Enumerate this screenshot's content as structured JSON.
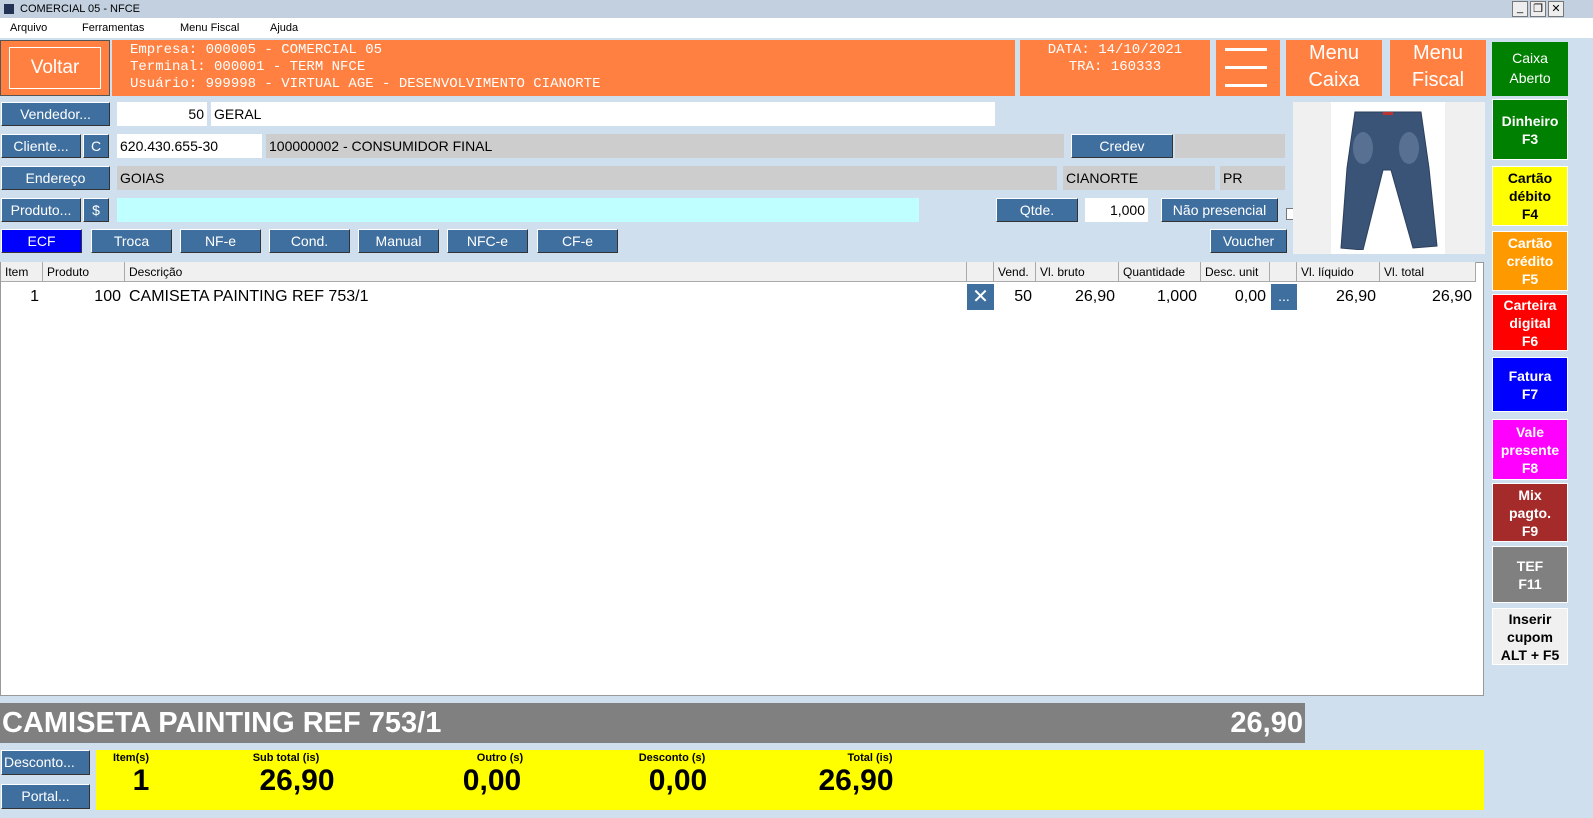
{
  "window": {
    "title": "COMERCIAL 05 - NFCE"
  },
  "menu": [
    "Arquivo",
    "Ferramentas",
    "Menu Fiscal",
    "Ajuda"
  ],
  "header": {
    "back": "Voltar",
    "empresa": "Empresa: 000005 - COMERCIAL 05",
    "terminal": "Terminal: 000001 - TERM NFCE",
    "usuario": "Usuário: 999998 - VIRTUAL AGE - DESENVOLVIMENTO CIANORTE",
    "data": "DATA: 14/10/2021",
    "tra": "TRA: 160333",
    "menu_caixa": [
      "Menu",
      "Caixa"
    ],
    "menu_fiscal": [
      "Menu",
      "Fiscal"
    ],
    "caixa_status": [
      "Caixa",
      "Aberto"
    ],
    "accent": "#ff8040"
  },
  "form": {
    "vendedor_btn": "Vendedor...",
    "vendedor_code": "50",
    "vendedor_name": "GERAL",
    "cliente_btn": "Cliente...",
    "c_btn": "C",
    "cpf": "620.430.655-30",
    "cliente_name": "100000002 - CONSUMIDOR FINAL",
    "credev": "Credev",
    "endereco_btn": "Endereço",
    "endereco": "GOIAS",
    "cidade": "CIANORTE",
    "uf": "PR",
    "produto_btn": "Produto...",
    "dollar_btn": "$",
    "produto_value": "",
    "qtde_btn": "Qtde.",
    "qtde": "1,000",
    "nao_presencial": "Não presencial",
    "nao_presencial_checked": false,
    "voucher": "Voucher"
  },
  "modes": [
    "ECF",
    "Troca",
    "NF-e",
    "Cond.",
    "Manual",
    "NFC-e",
    "CF-e"
  ],
  "table": {
    "headers": [
      "Item",
      "Produto",
      "Descrição",
      "",
      "Vend.",
      "Vl. bruto",
      "Quantidade",
      "Desc. unit",
      "",
      "Vl. líquido",
      "Vl. total"
    ],
    "rows": [
      {
        "item": "1",
        "produto": "100",
        "descricao": "CAMISETA PAINTING REF 753/1",
        "vend": "50",
        "vl_bruto": "26,90",
        "quantidade": "1,000",
        "desc_unit": "0,00",
        "more": "...",
        "vl_liquido": "26,90",
        "vl_total": "26,90"
      }
    ]
  },
  "current": {
    "descricao": "CAMISETA PAINTING REF 753/1",
    "valor": "26,90"
  },
  "bottom": {
    "desconto": "Desconto...",
    "portal": "Portal..."
  },
  "totals": {
    "labels": [
      "Item(s)",
      "Sub total (is)",
      "Outro (s)",
      "Desconto (s)",
      "Total (is)"
    ],
    "values": [
      "1",
      "26,90",
      "0,00",
      "0,00",
      "26,90"
    ]
  },
  "payments": [
    {
      "l1": "Dinheiro",
      "l2": "F3",
      "color": "#008000",
      "text": "#fff"
    },
    {
      "l1": "Cartão",
      "l2": "débito",
      "l3": "F4",
      "color": "#ffff00",
      "text": "#000"
    },
    {
      "l1": "Cartão",
      "l2": "crédito",
      "l3": "F5",
      "color": "#ff9900",
      "text": "#fff"
    },
    {
      "l1": "Carteira",
      "l2": "digital",
      "l3": "F6",
      "color": "#ff0000",
      "text": "#fff"
    },
    {
      "l1": "Fatura",
      "l2": "F7",
      "color": "#0000ff",
      "text": "#fff"
    },
    {
      "l1": "Vale",
      "l2": "presente",
      "l3": "F8",
      "color": "#ff00ff",
      "text": "#fff"
    },
    {
      "l1": "Mix",
      "l2": "pagto.",
      "l3": "F9",
      "color": "#a52a2a",
      "text": "#fff"
    },
    {
      "l1": "TEF",
      "l2": "F11",
      "color": "#808080",
      "text": "#fff"
    },
    {
      "l1": "Inserir",
      "l2": "cupom",
      "l3": "ALT + F5",
      "color": "#f0f0f0",
      "text": "#000"
    }
  ]
}
